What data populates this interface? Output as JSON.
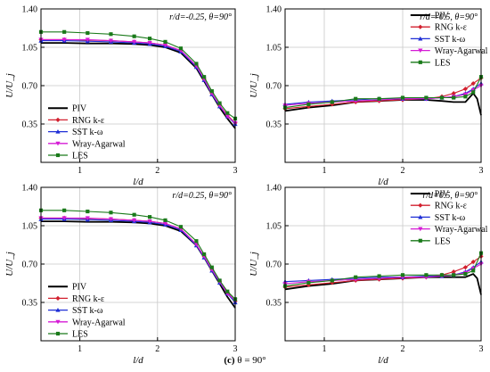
{
  "caption": {
    "label": "(c)",
    "text": "θ = 90°"
  },
  "styles": {
    "PIV": {
      "color": "#000000",
      "marker": "none",
      "width": 1.8
    },
    "RNG k-ε": {
      "color": "#d2202f",
      "marker": "diamond",
      "width": 1.1
    },
    "SST k-ω": {
      "color": "#1f2fd6",
      "marker": "triangle",
      "width": 1.1
    },
    "Wray-Agarwal": {
      "color": "#d51cd5",
      "marker": "triangle-down",
      "width": 1.1
    },
    "LES": {
      "color": "#1a7a1a",
      "marker": "square",
      "width": 1.1
    }
  },
  "chart_data": [
    {
      "type": "line",
      "annotation": "r/d=-0.25, θ=90°",
      "xlabel": "l/d",
      "ylabel": "U/U_j",
      "xlim": [
        0.5,
        3.0
      ],
      "ylim": [
        0.0,
        1.4
      ],
      "xticks": [
        1,
        2,
        3
      ],
      "yticks": [
        0.35,
        0.7,
        1.05,
        1.4
      ],
      "grid": true,
      "legend": "bottom-left",
      "series": [
        {
          "name": "PIV",
          "x": [
            0.5,
            0.8,
            1.1,
            1.4,
            1.7,
            1.9,
            2.1,
            2.3,
            2.5,
            2.6,
            2.7,
            2.8,
            2.9,
            3.0
          ],
          "y": [
            1.09,
            1.09,
            1.085,
            1.085,
            1.08,
            1.07,
            1.05,
            1.0,
            0.86,
            0.74,
            0.62,
            0.5,
            0.4,
            0.31
          ]
        },
        {
          "name": "RNG k-ε",
          "x": [
            0.5,
            0.8,
            1.1,
            1.4,
            1.7,
            1.9,
            2.1,
            2.3,
            2.5,
            2.6,
            2.7,
            2.8,
            2.9,
            3.0
          ],
          "y": [
            1.12,
            1.12,
            1.115,
            1.11,
            1.1,
            1.09,
            1.07,
            1.02,
            0.88,
            0.76,
            0.63,
            0.52,
            0.43,
            0.36
          ]
        },
        {
          "name": "SST k-ω",
          "x": [
            0.5,
            0.8,
            1.1,
            1.4,
            1.7,
            1.9,
            2.1,
            2.3,
            2.5,
            2.6,
            2.7,
            2.8,
            2.9,
            3.0
          ],
          "y": [
            1.11,
            1.11,
            1.105,
            1.1,
            1.09,
            1.08,
            1.06,
            1.01,
            0.87,
            0.75,
            0.62,
            0.51,
            0.42,
            0.35
          ]
        },
        {
          "name": "Wray-Agarwal",
          "x": [
            0.5,
            0.8,
            1.1,
            1.4,
            1.7,
            1.9,
            2.1,
            2.3,
            2.5,
            2.6,
            2.7,
            2.8,
            2.9,
            3.0
          ],
          "y": [
            1.12,
            1.12,
            1.12,
            1.11,
            1.1,
            1.09,
            1.07,
            1.02,
            0.88,
            0.76,
            0.63,
            0.52,
            0.42,
            0.36
          ]
        },
        {
          "name": "LES",
          "x": [
            0.5,
            0.8,
            1.1,
            1.4,
            1.7,
            1.9,
            2.1,
            2.3,
            2.5,
            2.6,
            2.7,
            2.8,
            2.9,
            3.0
          ],
          "y": [
            1.19,
            1.19,
            1.18,
            1.17,
            1.15,
            1.13,
            1.1,
            1.04,
            0.9,
            0.78,
            0.65,
            0.54,
            0.45,
            0.4
          ]
        }
      ]
    },
    {
      "type": "line",
      "annotation": "r/d=-0.5, θ=90°",
      "xlabel": "l/d",
      "ylabel": "U/U_j",
      "xlim": [
        0.5,
        3.0
      ],
      "ylim": [
        0.0,
        1.4
      ],
      "xticks": [
        1,
        2,
        3
      ],
      "yticks": [
        0.35,
        0.7,
        1.05,
        1.4
      ],
      "grid": true,
      "legend": "top-right",
      "series": [
        {
          "name": "PIV",
          "x": [
            0.5,
            0.8,
            1.1,
            1.4,
            1.7,
            2.0,
            2.3,
            2.5,
            2.65,
            2.8,
            2.9,
            2.95,
            3.0
          ],
          "y": [
            0.47,
            0.5,
            0.52,
            0.55,
            0.56,
            0.57,
            0.57,
            0.56,
            0.55,
            0.55,
            0.63,
            0.58,
            0.43
          ]
        },
        {
          "name": "RNG k-ε",
          "x": [
            0.5,
            0.8,
            1.1,
            1.4,
            1.7,
            2.0,
            2.3,
            2.5,
            2.65,
            2.8,
            2.9,
            3.0
          ],
          "y": [
            0.49,
            0.51,
            0.53,
            0.55,
            0.56,
            0.57,
            0.58,
            0.6,
            0.63,
            0.67,
            0.72,
            0.77
          ]
        },
        {
          "name": "SST k-ω",
          "x": [
            0.5,
            0.8,
            1.1,
            1.4,
            1.7,
            2.0,
            2.3,
            2.5,
            2.65,
            2.8,
            2.9,
            3.0
          ],
          "y": [
            0.53,
            0.55,
            0.56,
            0.57,
            0.58,
            0.58,
            0.58,
            0.59,
            0.6,
            0.63,
            0.67,
            0.72
          ]
        },
        {
          "name": "Wray-Agarwal",
          "x": [
            0.5,
            0.8,
            1.1,
            1.4,
            1.7,
            2.0,
            2.3,
            2.5,
            2.65,
            2.8,
            2.9,
            3.0
          ],
          "y": [
            0.52,
            0.54,
            0.55,
            0.56,
            0.57,
            0.58,
            0.58,
            0.59,
            0.6,
            0.62,
            0.66,
            0.7
          ]
        },
        {
          "name": "LES",
          "x": [
            0.5,
            0.8,
            1.1,
            1.4,
            1.7,
            2.0,
            2.3,
            2.5,
            2.65,
            2.8,
            2.9,
            3.0
          ],
          "y": [
            0.5,
            0.53,
            0.55,
            0.58,
            0.58,
            0.59,
            0.59,
            0.59,
            0.59,
            0.6,
            0.64,
            0.78
          ]
        }
      ]
    },
    {
      "type": "line",
      "annotation": "r/d=0.25, θ=90°",
      "xlabel": "l/d",
      "ylabel": "U/U_j",
      "xlim": [
        0.5,
        3.0
      ],
      "ylim": [
        0.0,
        1.4
      ],
      "xticks": [
        1,
        2,
        3
      ],
      "yticks": [
        0.35,
        0.7,
        1.05,
        1.4
      ],
      "grid": true,
      "legend": "bottom-left",
      "series": [
        {
          "name": "PIV",
          "x": [
            0.5,
            0.8,
            1.1,
            1.4,
            1.7,
            1.9,
            2.1,
            2.3,
            2.5,
            2.6,
            2.7,
            2.8,
            2.9,
            3.0
          ],
          "y": [
            1.09,
            1.09,
            1.085,
            1.085,
            1.08,
            1.07,
            1.05,
            1.0,
            0.87,
            0.76,
            0.64,
            0.52,
            0.4,
            0.3
          ]
        },
        {
          "name": "RNG k-ε",
          "x": [
            0.5,
            0.8,
            1.1,
            1.4,
            1.7,
            1.9,
            2.1,
            2.3,
            2.5,
            2.6,
            2.7,
            2.8,
            2.9,
            3.0
          ],
          "y": [
            1.12,
            1.12,
            1.115,
            1.11,
            1.1,
            1.09,
            1.07,
            1.02,
            0.88,
            0.77,
            0.65,
            0.54,
            0.44,
            0.36
          ]
        },
        {
          "name": "SST k-ω",
          "x": [
            0.5,
            0.8,
            1.1,
            1.4,
            1.7,
            1.9,
            2.1,
            2.3,
            2.5,
            2.6,
            2.7,
            2.8,
            2.9,
            3.0
          ],
          "y": [
            1.11,
            1.11,
            1.105,
            1.1,
            1.09,
            1.08,
            1.06,
            1.01,
            0.87,
            0.76,
            0.64,
            0.53,
            0.43,
            0.35
          ]
        },
        {
          "name": "Wray-Agarwal",
          "x": [
            0.5,
            0.8,
            1.1,
            1.4,
            1.7,
            1.9,
            2.1,
            2.3,
            2.5,
            2.6,
            2.7,
            2.8,
            2.9,
            3.0
          ],
          "y": [
            1.12,
            1.12,
            1.12,
            1.11,
            1.1,
            1.09,
            1.07,
            1.02,
            0.88,
            0.77,
            0.65,
            0.54,
            0.43,
            0.37
          ]
        },
        {
          "name": "LES",
          "x": [
            0.5,
            0.8,
            1.1,
            1.4,
            1.7,
            1.9,
            2.1,
            2.3,
            2.5,
            2.6,
            2.7,
            2.8,
            2.9,
            3.0
          ],
          "y": [
            1.19,
            1.19,
            1.18,
            1.17,
            1.15,
            1.13,
            1.1,
            1.04,
            0.91,
            0.79,
            0.67,
            0.55,
            0.45,
            0.38
          ]
        }
      ]
    },
    {
      "type": "line",
      "annotation": "r/d=0.5, θ=90°",
      "xlabel": "l/d",
      "ylabel": "U/U_j",
      "xlim": [
        0.5,
        3.0
      ],
      "ylim": [
        0.0,
        1.4
      ],
      "xticks": [
        1,
        2,
        3
      ],
      "yticks": [
        0.35,
        0.7,
        1.05,
        1.4
      ],
      "grid": true,
      "legend": "top-right",
      "series": [
        {
          "name": "PIV",
          "x": [
            0.5,
            0.8,
            1.1,
            1.4,
            1.7,
            2.0,
            2.3,
            2.5,
            2.65,
            2.8,
            2.9,
            2.95,
            3.0
          ],
          "y": [
            0.47,
            0.5,
            0.52,
            0.55,
            0.56,
            0.57,
            0.58,
            0.58,
            0.58,
            0.58,
            0.61,
            0.57,
            0.42
          ]
        },
        {
          "name": "RNG k-ε",
          "x": [
            0.5,
            0.8,
            1.1,
            1.4,
            1.7,
            2.0,
            2.3,
            2.5,
            2.65,
            2.8,
            2.9,
            3.0
          ],
          "y": [
            0.49,
            0.51,
            0.53,
            0.55,
            0.56,
            0.57,
            0.58,
            0.6,
            0.63,
            0.67,
            0.72,
            0.77
          ]
        },
        {
          "name": "SST k-ω",
          "x": [
            0.5,
            0.8,
            1.1,
            1.4,
            1.7,
            2.0,
            2.3,
            2.5,
            2.65,
            2.8,
            2.9,
            3.0
          ],
          "y": [
            0.54,
            0.55,
            0.56,
            0.57,
            0.58,
            0.58,
            0.59,
            0.59,
            0.6,
            0.63,
            0.67,
            0.72
          ]
        },
        {
          "name": "Wray-Agarwal",
          "x": [
            0.5,
            0.8,
            1.1,
            1.4,
            1.7,
            2.0,
            2.3,
            2.5,
            2.65,
            2.8,
            2.9,
            3.0
          ],
          "y": [
            0.52,
            0.54,
            0.55,
            0.56,
            0.57,
            0.58,
            0.58,
            0.59,
            0.6,
            0.62,
            0.66,
            0.7
          ]
        },
        {
          "name": "LES",
          "x": [
            0.5,
            0.8,
            1.1,
            1.4,
            1.7,
            2.0,
            2.3,
            2.5,
            2.65,
            2.8,
            2.9,
            3.0
          ],
          "y": [
            0.5,
            0.53,
            0.55,
            0.58,
            0.59,
            0.6,
            0.6,
            0.6,
            0.6,
            0.61,
            0.64,
            0.8
          ]
        }
      ]
    }
  ]
}
